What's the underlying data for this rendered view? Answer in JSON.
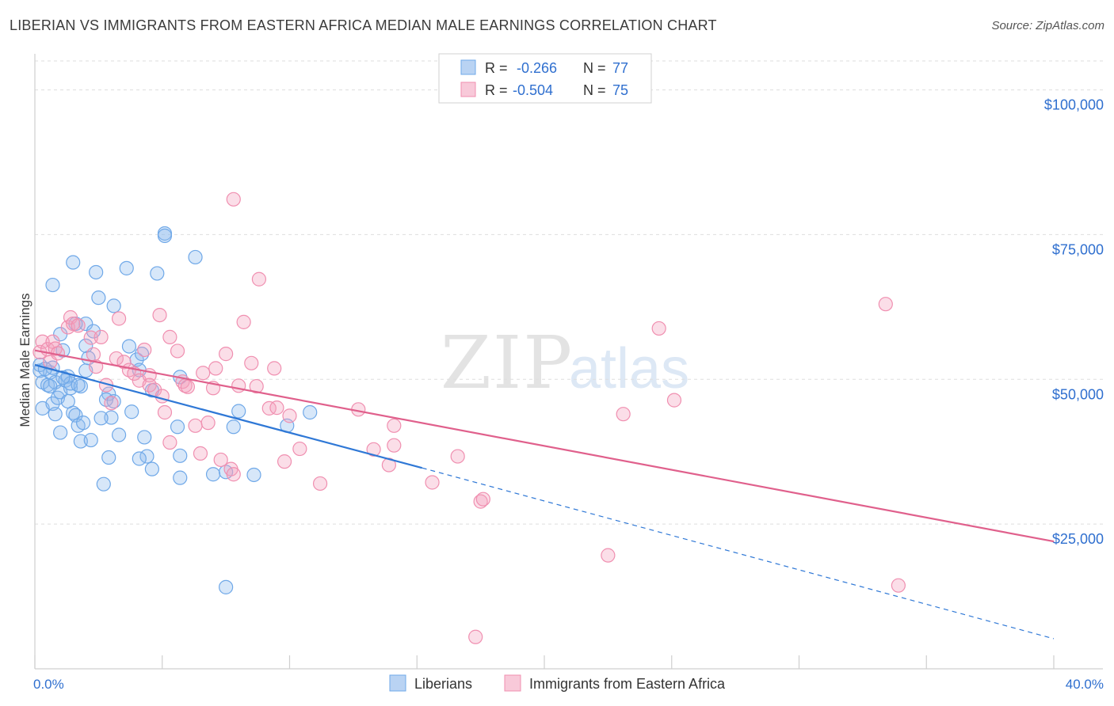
{
  "title": "LIBERIAN VS IMMIGRANTS FROM EASTERN AFRICA MEDIAN MALE EARNINGS CORRELATION CHART",
  "source": "Source: ZipAtlas.com",
  "watermark": {
    "zip": "ZIP",
    "atlas": "atlas"
  },
  "legend_box": {
    "rows": [
      {
        "r_label": "R =",
        "r_value": "-0.266",
        "n_label": "N =",
        "n_value": "77"
      },
      {
        "r_label": "R =",
        "r_value": "-0.504",
        "n_label": "N =",
        "n_value": "75"
      }
    ]
  },
  "chart_data": {
    "type": "scatter",
    "title": "LIBERIAN VS IMMIGRANTS FROM EASTERN AFRICA MEDIAN MALE EARNINGS CORRELATION CHART",
    "ylabel": "Median Male Earnings",
    "xlim": [
      0,
      40
    ],
    "ylim": [
      0,
      105000
    ],
    "x_tick_labels": [
      "0.0%",
      "40.0%"
    ],
    "y_ticks": [
      25000,
      50000,
      75000,
      100000
    ],
    "y_tick_labels": [
      "$25,000",
      "$50,000",
      "$75,000",
      "$100,000"
    ],
    "grid": "horizontal dashed",
    "legend_position": "bottom-center",
    "series": [
      {
        "name": "Liberians",
        "color": "#6fa8e8",
        "line_color": "#2f78d6",
        "R": -0.266,
        "N": 77,
        "trend": {
          "x0": 0,
          "y0": 52500,
          "x1": 15.2,
          "y1": 34700,
          "dash_to_x": 40,
          "dash_to_y": 5200
        },
        "points": [
          [
            0.2,
            51500
          ],
          [
            0.2,
            52500
          ],
          [
            0.3,
            49500
          ],
          [
            0.5,
            49000
          ],
          [
            0.6,
            51200
          ],
          [
            0.7,
            52000
          ],
          [
            0.8,
            49500
          ],
          [
            0.3,
            45000
          ],
          [
            0.7,
            45800
          ],
          [
            0.8,
            44000
          ],
          [
            0.9,
            46800
          ],
          [
            1.0,
            47800
          ],
          [
            1.2,
            49800
          ],
          [
            1.3,
            50500
          ],
          [
            1.4,
            48500
          ],
          [
            1.4,
            49300
          ],
          [
            1.0,
            57800
          ],
          [
            1.1,
            55000
          ],
          [
            1.0,
            40800
          ],
          [
            1.5,
            44200
          ],
          [
            1.6,
            43800
          ],
          [
            1.7,
            42000
          ],
          [
            1.8,
            39300
          ],
          [
            1.9,
            42500
          ],
          [
            1.8,
            48800
          ],
          [
            2.0,
            51500
          ],
          [
            2.0,
            55800
          ],
          [
            2.1,
            53700
          ],
          [
            2.0,
            59600
          ],
          [
            2.3,
            58300
          ],
          [
            1.5,
            70200
          ],
          [
            1.6,
            59600
          ],
          [
            0.7,
            66300
          ],
          [
            2.4,
            68500
          ],
          [
            2.5,
            64100
          ],
          [
            3.1,
            62700
          ],
          [
            2.9,
            47500
          ],
          [
            2.8,
            46500
          ],
          [
            3.0,
            43400
          ],
          [
            3.3,
            40400
          ],
          [
            3.8,
            44400
          ],
          [
            3.7,
            55700
          ],
          [
            4.0,
            53400
          ],
          [
            4.1,
            51600
          ],
          [
            4.2,
            54400
          ],
          [
            4.6,
            48100
          ],
          [
            4.3,
            40000
          ],
          [
            4.4,
            36700
          ],
          [
            4.6,
            34500
          ],
          [
            3.6,
            69200
          ],
          [
            4.8,
            68300
          ],
          [
            5.1,
            75200
          ],
          [
            5.1,
            74800
          ],
          [
            6.3,
            71100
          ],
          [
            5.6,
            41800
          ],
          [
            5.7,
            36800
          ],
          [
            5.7,
            33000
          ],
          [
            5.7,
            50400
          ],
          [
            7.0,
            33600
          ],
          [
            7.5,
            34000
          ],
          [
            7.5,
            14100
          ],
          [
            7.8,
            41800
          ],
          [
            8.0,
            44500
          ],
          [
            8.6,
            33500
          ],
          [
            9.9,
            42000
          ],
          [
            10.8,
            44300
          ],
          [
            1.3,
            46200
          ],
          [
            2.7,
            31900
          ],
          [
            2.9,
            36500
          ],
          [
            2.2,
            39500
          ],
          [
            2.6,
            43300
          ],
          [
            0.4,
            51800
          ],
          [
            3.1,
            46200
          ],
          [
            1.1,
            50300
          ],
          [
            0.6,
            48800
          ],
          [
            1.7,
            49000
          ],
          [
            4.1,
            36300
          ]
        ]
      },
      {
        "name": "Immigrants from Eastern Africa",
        "color": "#f08fb0",
        "line_color": "#e0608c",
        "R": -0.504,
        "N": 75,
        "trend": {
          "x0": 0,
          "y0": 55000,
          "x1": 40,
          "y1": 22000
        },
        "points": [
          [
            0.2,
            54700
          ],
          [
            0.3,
            56500
          ],
          [
            0.5,
            55200
          ],
          [
            0.6,
            53000
          ],
          [
            0.7,
            56500
          ],
          [
            0.8,
            55300
          ],
          [
            0.9,
            54500
          ],
          [
            1.3,
            59000
          ],
          [
            1.4,
            60700
          ],
          [
            1.5,
            59600
          ],
          [
            1.7,
            59300
          ],
          [
            2.2,
            57200
          ],
          [
            2.3,
            54300
          ],
          [
            2.4,
            52200
          ],
          [
            2.6,
            57300
          ],
          [
            2.8,
            49000
          ],
          [
            3.0,
            45900
          ],
          [
            3.2,
            53600
          ],
          [
            3.3,
            60500
          ],
          [
            3.5,
            53000
          ],
          [
            3.7,
            51600
          ],
          [
            3.9,
            51000
          ],
          [
            4.1,
            49800
          ],
          [
            4.3,
            55100
          ],
          [
            4.5,
            50700
          ],
          [
            4.5,
            49000
          ],
          [
            4.7,
            48200
          ],
          [
            4.9,
            61100
          ],
          [
            5.0,
            47100
          ],
          [
            5.1,
            44300
          ],
          [
            5.3,
            57300
          ],
          [
            5.3,
            39100
          ],
          [
            5.6,
            54900
          ],
          [
            5.8,
            49600
          ],
          [
            5.9,
            48900
          ],
          [
            6.0,
            48700
          ],
          [
            6.3,
            42000
          ],
          [
            6.5,
            37200
          ],
          [
            6.6,
            51100
          ],
          [
            6.8,
            42500
          ],
          [
            7.0,
            48500
          ],
          [
            7.1,
            51900
          ],
          [
            7.3,
            36100
          ],
          [
            7.5,
            54400
          ],
          [
            7.7,
            34500
          ],
          [
            7.8,
            33600
          ],
          [
            7.8,
            81100
          ],
          [
            8.0,
            48900
          ],
          [
            8.2,
            59900
          ],
          [
            8.5,
            52800
          ],
          [
            8.7,
            48800
          ],
          [
            8.8,
            67300
          ],
          [
            9.2,
            45000
          ],
          [
            9.4,
            51900
          ],
          [
            9.5,
            45100
          ],
          [
            9.8,
            35800
          ],
          [
            10.0,
            43700
          ],
          [
            10.4,
            38000
          ],
          [
            11.2,
            32000
          ],
          [
            12.7,
            44800
          ],
          [
            13.3,
            37900
          ],
          [
            13.9,
            35200
          ],
          [
            14.1,
            42000
          ],
          [
            14.1,
            38600
          ],
          [
            15.6,
            32200
          ],
          [
            16.6,
            36700
          ],
          [
            17.5,
            28900
          ],
          [
            17.3,
            5500
          ],
          [
            17.6,
            29300
          ],
          [
            22.5,
            19600
          ],
          [
            23.1,
            44000
          ],
          [
            24.5,
            58800
          ],
          [
            25.1,
            46400
          ],
          [
            33.4,
            63000
          ],
          [
            33.9,
            14400
          ]
        ]
      }
    ]
  }
}
